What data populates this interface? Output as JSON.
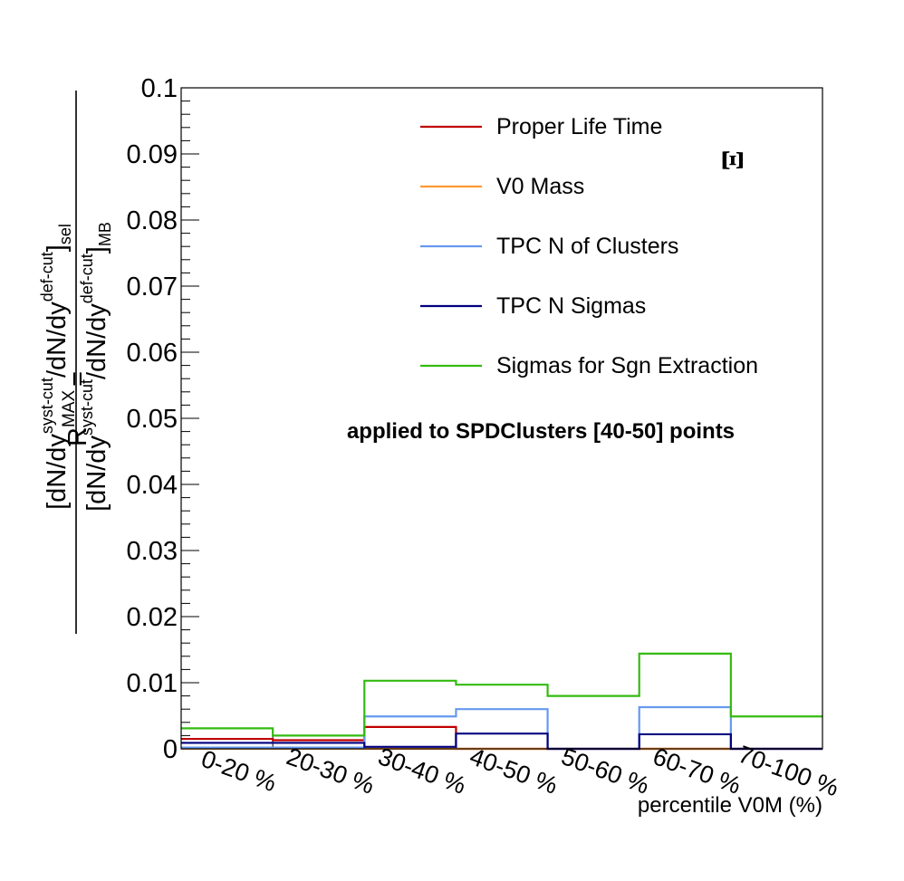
{
  "chart_data": {
    "type": "step",
    "categories": [
      "0-20 %",
      "20-30 %",
      "30-40 %",
      "40-50 %",
      "50-60 %",
      "60-70 %",
      "70-100 %"
    ],
    "xlabel": "percentile V0M (%)",
    "ylabel": {
      "prefix": "R",
      "prefix_sup": "MAX",
      "equals": "=",
      "num_main": "[dN/dy",
      "num_sup1": "syst-cut",
      "num_mid": "/dN/dy",
      "num_sup2": "def-cut",
      "num_close": "]",
      "num_sub": "sel",
      "den_main": "[dN/dy",
      "den_sup1": "syst-cut",
      "den_mid": "/dN/dy",
      "den_sup2": "def-cut",
      "den_close": "]",
      "den_sub": "MB"
    },
    "ylim": [
      0,
      0.1
    ],
    "yticks": [
      "0",
      "0.01",
      "0.02",
      "0.03",
      "0.04",
      "0.05",
      "0.06",
      "0.07",
      "0.08",
      "0.09",
      "0.1"
    ],
    "annotation": "applied to SPDClusters [40-50] points",
    "particle_symbol": "Ξ",
    "legend_position": "top-right",
    "series": [
      {
        "name": "Proper Life Time",
        "color": "#c00000",
        "values": [
          0.0015,
          0.0013,
          0.0033,
          0.0,
          0.0,
          0.0,
          0.0
        ]
      },
      {
        "name": "V0 Mass",
        "color": "#ff9933",
        "values": [
          0.0,
          0.0,
          0.0,
          0.0,
          0.0,
          0.0,
          0.0
        ]
      },
      {
        "name": "TPC N of Clusters",
        "color": "#6699ee",
        "values": [
          0.0002,
          0.0002,
          0.0049,
          0.006,
          0.0,
          0.0063,
          0.0
        ]
      },
      {
        "name": "TPC N Sigmas",
        "color": "#000080",
        "values": [
          0.0009,
          0.0009,
          0.0003,
          0.0023,
          0.0,
          0.0022,
          0.0
        ]
      },
      {
        "name": "Sigmas for Sgn Extraction",
        "color": "#33bb11",
        "values": [
          0.0031,
          0.002,
          0.0103,
          0.0097,
          0.008,
          0.0144,
          0.0049
        ]
      }
    ]
  }
}
